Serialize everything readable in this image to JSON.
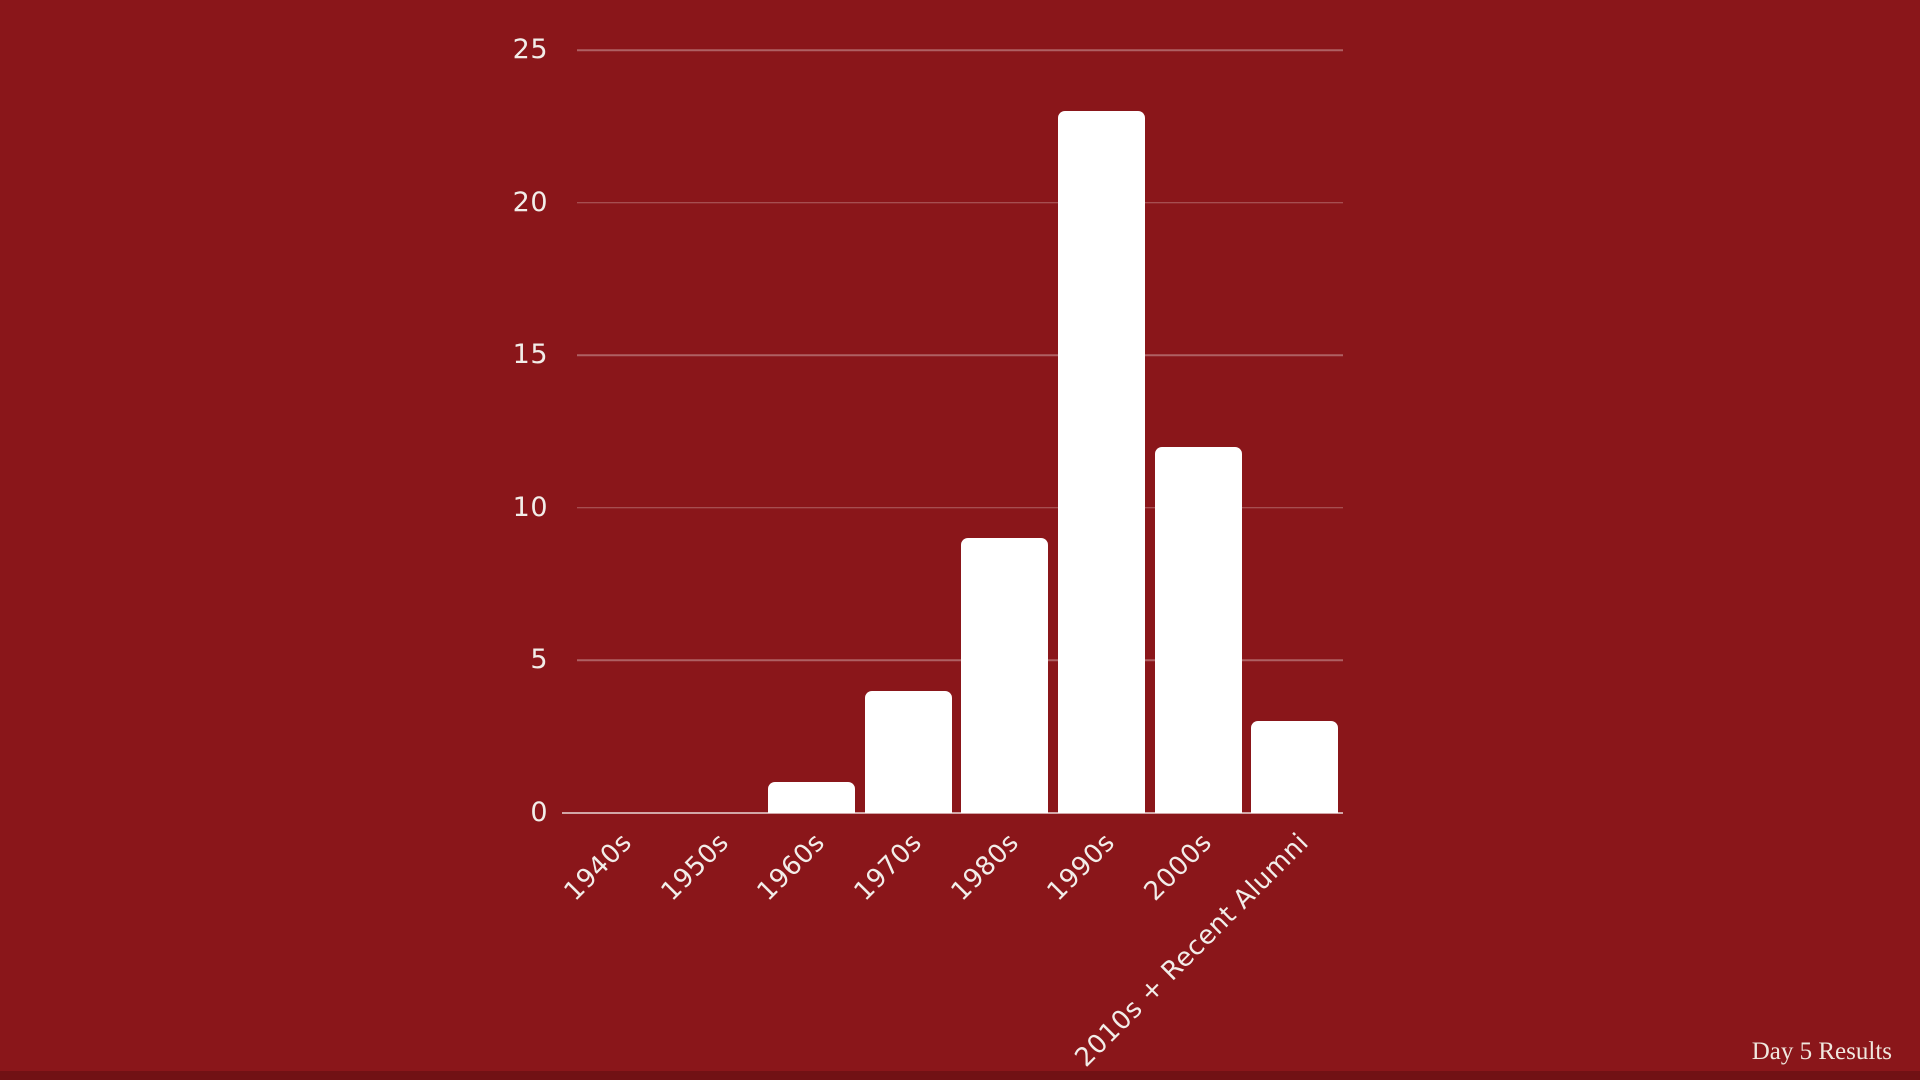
{
  "chart_data": {
    "type": "bar",
    "title": "",
    "xlabel": "",
    "ylabel": "",
    "categories": [
      "1940s",
      "1950s",
      "1960s",
      "1970s",
      "1980s",
      "1990s",
      "2000s",
      "2010s + Recent Alumni"
    ],
    "values": [
      0,
      0,
      1,
      4,
      9,
      23,
      12,
      3
    ],
    "ylim": [
      0,
      25
    ],
    "yticks": [
      0,
      5,
      10,
      15,
      20,
      25
    ],
    "grid": true,
    "legend": "none",
    "x_tick_rotation_deg": 45
  },
  "colors": {
    "background": "#8A161A",
    "bar_fill": "#FFFFFF",
    "gridline": "rgba(255,255,255,0.32)",
    "axis_line": "rgba(255,255,255,0.62)",
    "tick_text": "#F2EDE9",
    "footer_text": "#F0E8DF",
    "bottom_strip": "#711114"
  },
  "footer": {
    "label": "Day 5 Results"
  }
}
